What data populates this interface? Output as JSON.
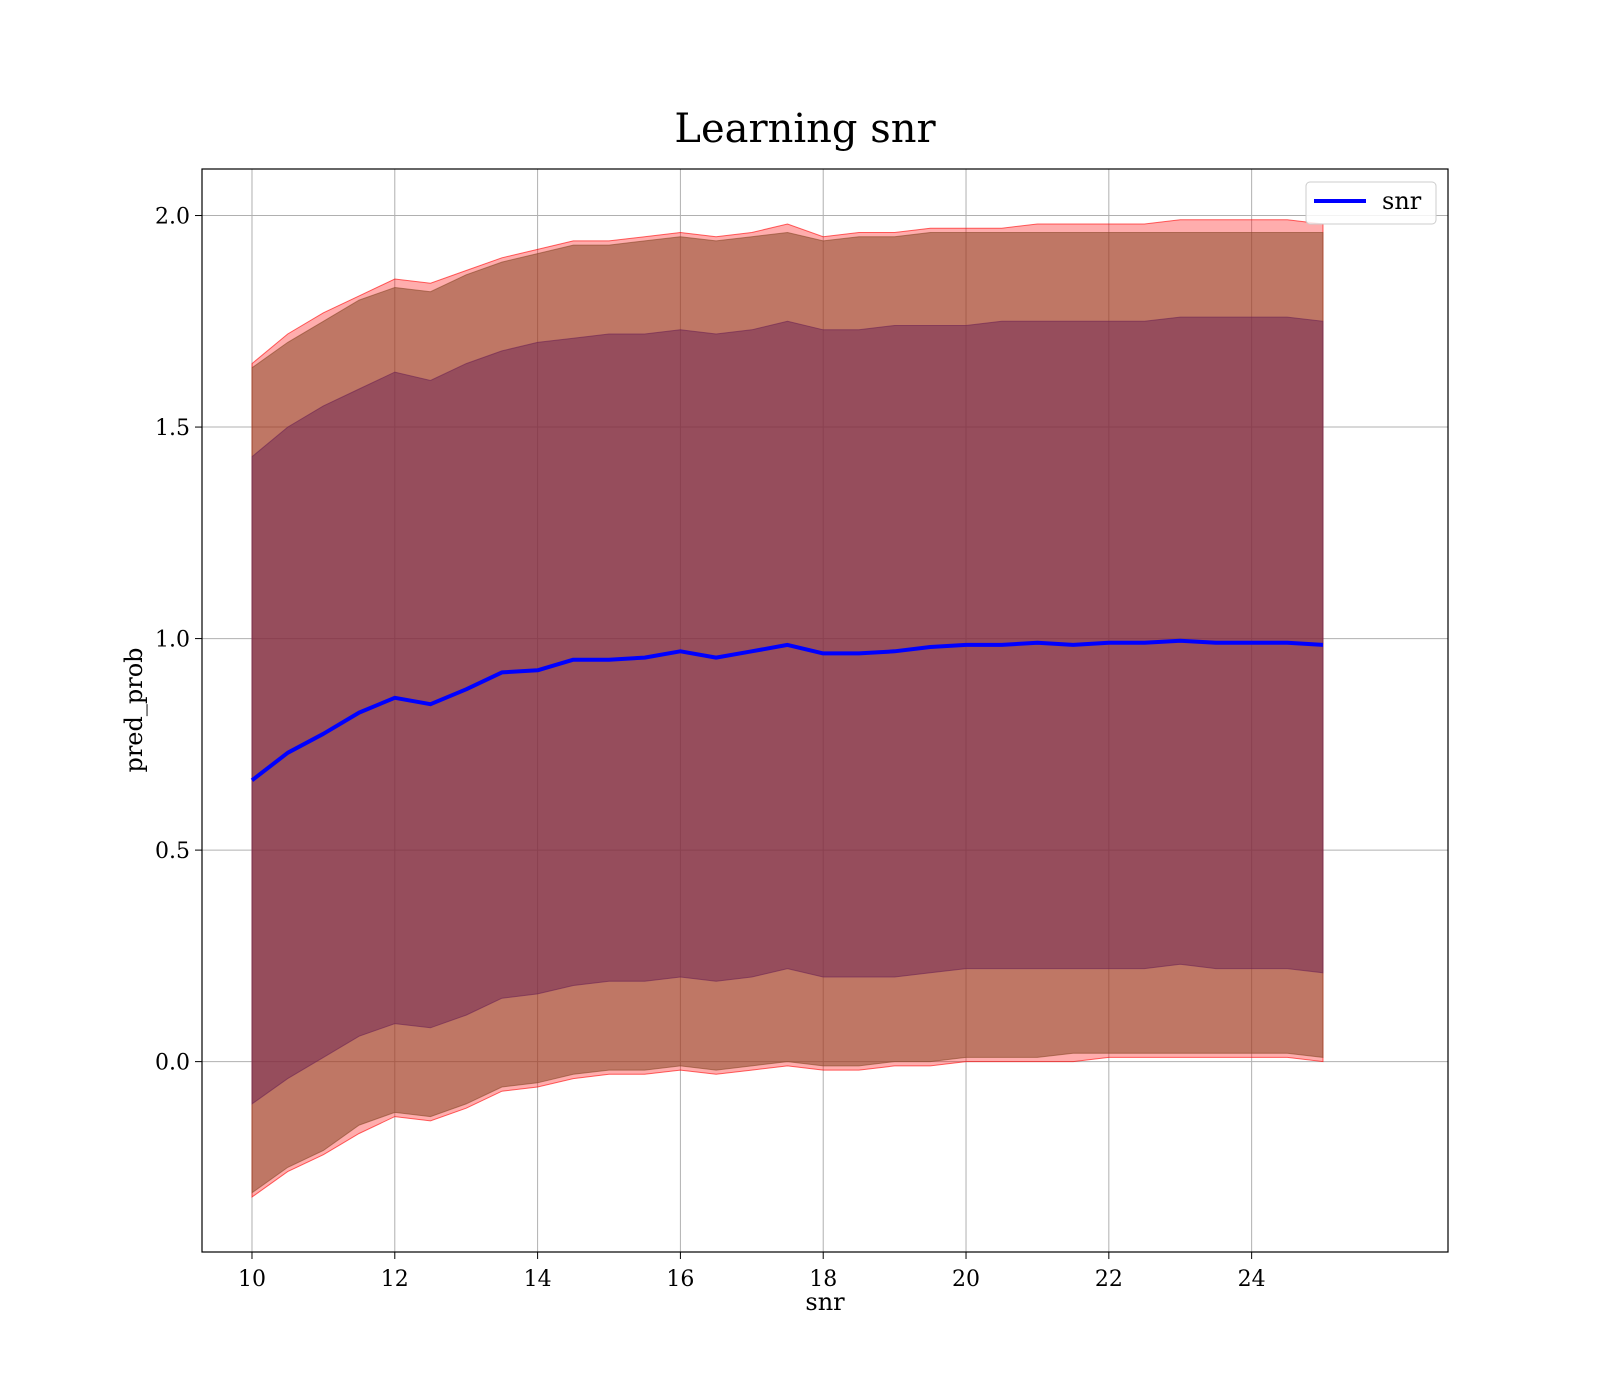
{
  "chart_data": {
    "type": "line",
    "title": "Learning snr",
    "xlabel": "snr",
    "ylabel": "pred_prob",
    "xlim": [
      9.3,
      26.75
    ],
    "ylim": [
      -0.45,
      2.11
    ],
    "xticks": [
      10,
      12,
      14,
      16,
      18,
      20,
      22,
      24
    ],
    "yticks": [
      0.0,
      0.5,
      1.0,
      1.5,
      2.0
    ],
    "xtick_labels": [
      "10",
      "12",
      "14",
      "16",
      "18",
      "20",
      "22",
      "24"
    ],
    "ytick_labels": [
      "0.0",
      "0.5",
      "1.0",
      "1.5",
      "2.0"
    ],
    "grid": true,
    "legend": {
      "position": "top-right",
      "entries": [
        "snr"
      ]
    },
    "x": [
      10,
      10.5,
      11,
      11.5,
      12,
      12.5,
      13,
      13.5,
      14,
      14.5,
      15,
      15.5,
      16,
      16.5,
      17,
      17.5,
      18,
      18.5,
      19,
      19.5,
      20,
      20.5,
      21,
      21.5,
      22,
      22.5,
      23,
      23.5,
      24,
      24.5,
      25
    ],
    "series": [
      {
        "name": "snr",
        "color": "#0000ff",
        "values": [
          0.665,
          0.73,
          0.775,
          0.825,
          0.86,
          0.845,
          0.88,
          0.92,
          0.925,
          0.95,
          0.95,
          0.955,
          0.97,
          0.955,
          0.97,
          0.985,
          0.965,
          0.965,
          0.97,
          0.98,
          0.985,
          0.985,
          0.99,
          0.985,
          0.99,
          0.99,
          0.995,
          0.99,
          0.99,
          0.99,
          0.985
        ]
      }
    ],
    "bands": [
      {
        "color": "#ff0000",
        "opacity": 0.32,
        "upper": [
          1.65,
          1.72,
          1.77,
          1.81,
          1.85,
          1.84,
          1.87,
          1.9,
          1.92,
          1.94,
          1.94,
          1.95,
          1.96,
          1.95,
          1.96,
          1.98,
          1.95,
          1.96,
          1.96,
          1.97,
          1.97,
          1.97,
          1.98,
          1.98,
          1.98,
          1.98,
          1.99,
          1.99,
          1.99,
          1.99,
          1.98
        ],
        "lower": [
          -0.32,
          -0.26,
          -0.22,
          -0.17,
          -0.13,
          -0.14,
          -0.11,
          -0.07,
          -0.06,
          -0.04,
          -0.03,
          -0.03,
          -0.02,
          -0.03,
          -0.02,
          -0.01,
          -0.02,
          -0.02,
          -0.01,
          -0.01,
          0.0,
          0.0,
          0.0,
          0.0,
          0.01,
          0.01,
          0.01,
          0.01,
          0.01,
          0.01,
          0.0
        ]
      },
      {
        "color": "#8b4a2a",
        "opacity": 0.55,
        "upper": [
          1.64,
          1.7,
          1.75,
          1.8,
          1.83,
          1.82,
          1.86,
          1.89,
          1.91,
          1.93,
          1.93,
          1.94,
          1.95,
          1.94,
          1.95,
          1.96,
          1.94,
          1.95,
          1.95,
          1.96,
          1.96,
          1.96,
          1.96,
          1.96,
          1.96,
          1.96,
          1.96,
          1.96,
          1.96,
          1.96,
          1.96
        ],
        "lower": [
          -0.31,
          -0.25,
          -0.21,
          -0.15,
          -0.12,
          -0.13,
          -0.1,
          -0.06,
          -0.05,
          -0.03,
          -0.02,
          -0.02,
          -0.01,
          -0.02,
          -0.01,
          0.0,
          -0.01,
          -0.01,
          0.0,
          0.0,
          0.01,
          0.01,
          0.01,
          0.02,
          0.02,
          0.02,
          0.02,
          0.02,
          0.02,
          0.02,
          0.01
        ]
      },
      {
        "color": "#6e2454",
        "opacity": 0.5,
        "upper": [
          1.43,
          1.5,
          1.55,
          1.59,
          1.63,
          1.61,
          1.65,
          1.68,
          1.7,
          1.71,
          1.72,
          1.72,
          1.73,
          1.72,
          1.73,
          1.75,
          1.73,
          1.73,
          1.74,
          1.74,
          1.74,
          1.75,
          1.75,
          1.75,
          1.75,
          1.75,
          1.76,
          1.76,
          1.76,
          1.76,
          1.75
        ],
        "lower": [
          -0.1,
          -0.04,
          0.01,
          0.06,
          0.09,
          0.08,
          0.11,
          0.15,
          0.16,
          0.18,
          0.19,
          0.19,
          0.2,
          0.19,
          0.2,
          0.22,
          0.2,
          0.2,
          0.2,
          0.21,
          0.22,
          0.22,
          0.22,
          0.22,
          0.22,
          0.22,
          0.23,
          0.22,
          0.22,
          0.22,
          0.21
        ]
      }
    ]
  }
}
